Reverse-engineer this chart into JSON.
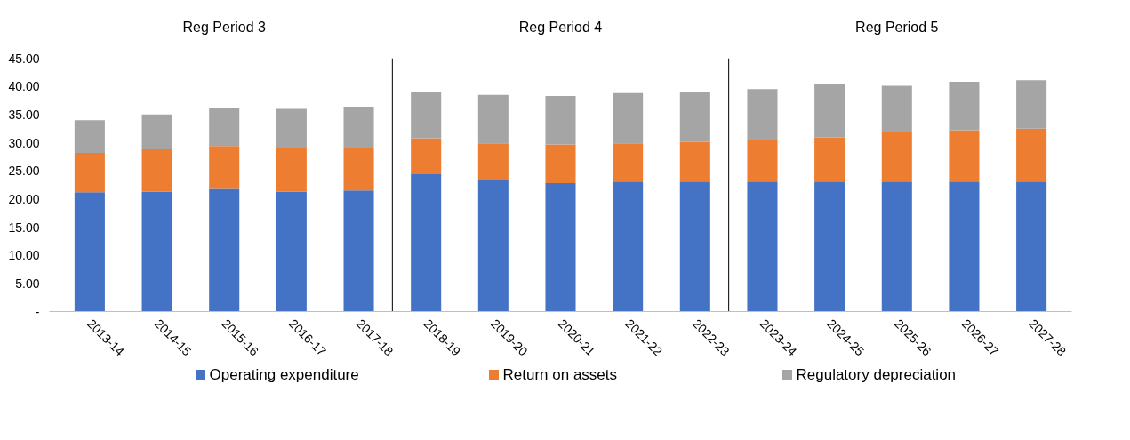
{
  "chart_data": {
    "type": "bar",
    "stacked": true,
    "categories": [
      "2013-14",
      "2014-15",
      "2015-16",
      "2016-17",
      "2017-18",
      "2018-19",
      "2019-20",
      "2020-21",
      "2021-22",
      "2022-23",
      "2023-24",
      "2024-25",
      "2025-26",
      "2026-27",
      "2027-28"
    ],
    "series": [
      {
        "name": "Operating expenditure",
        "color": "#4472c4",
        "values": [
          21.2,
          21.3,
          21.8,
          21.3,
          21.5,
          24.4,
          23.4,
          22.8,
          23.1,
          23.1,
          23.1,
          23.1,
          23.1,
          23.1,
          23.1
        ]
      },
      {
        "name": "Return on assets",
        "color": "#ed7d31",
        "values": [
          7.0,
          7.5,
          7.6,
          7.8,
          7.6,
          6.4,
          6.5,
          6.9,
          6.8,
          7.0,
          7.3,
          7.8,
          8.7,
          9.1,
          9.4
        ]
      },
      {
        "name": "Regulatory depreciation",
        "color": "#a5a5a5",
        "values": [
          5.8,
          6.2,
          6.7,
          6.9,
          7.3,
          8.2,
          8.6,
          8.6,
          8.9,
          8.9,
          9.1,
          9.5,
          8.3,
          8.6,
          8.6
        ]
      }
    ],
    "ylim": [
      0,
      45
    ],
    "yticks": [
      {
        "value": 0,
        "label": "-"
      },
      {
        "value": 5,
        "label": "5.00"
      },
      {
        "value": 10,
        "label": "10.00"
      },
      {
        "value": 15,
        "label": "15.00"
      },
      {
        "value": 20,
        "label": "20.00"
      },
      {
        "value": 25,
        "label": "25.00"
      },
      {
        "value": 30,
        "label": "30.00"
      },
      {
        "value": 35,
        "label": "35.00"
      },
      {
        "value": 40,
        "label": "40.00"
      },
      {
        "value": 45,
        "label": "45.00"
      }
    ],
    "annotations": [
      "Reg Period 3",
      "Reg Period 4",
      "Reg Period 5"
    ],
    "grid": false,
    "legend": "bottom"
  }
}
